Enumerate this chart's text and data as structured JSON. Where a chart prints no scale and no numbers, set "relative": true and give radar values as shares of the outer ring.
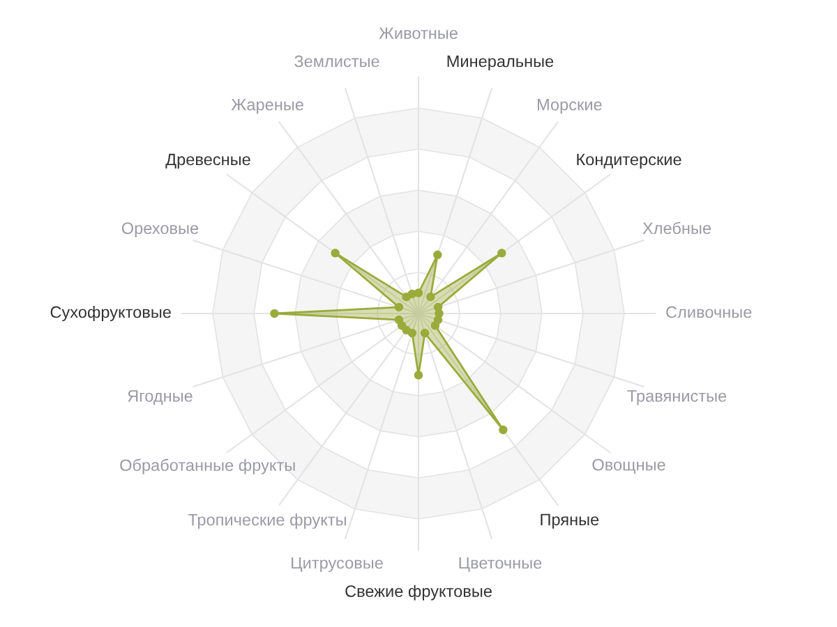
{
  "chart_data": {
    "type": "radar",
    "relative": true,
    "grid": true,
    "marker": "circle",
    "categories": [
      "Животные",
      "Минеральные",
      "Морские",
      "Кондитерские",
      "Хлебные",
      "Сливочные",
      "Травянистые",
      "Овощные",
      "Пряные",
      "Цветочные",
      "Свежие фруктовые",
      "Цитрусовые",
      "Тропические фрукты",
      "Обработанные фрукты",
      "Ягодные",
      "Сухофруктовые",
      "Ореховые",
      "Древесные",
      "Жареные",
      "Землистые"
    ],
    "series": [
      {
        "color": "#9aab3c",
        "values": [
          0.1,
          0.3,
          0.1,
          0.5,
          0.1,
          0.1,
          0.1,
          0.1,
          0.7,
          0.1,
          0.3,
          0.1,
          0.1,
          0.1,
          0.1,
          0.7,
          0.1,
          0.5,
          0.1,
          0.1
        ]
      }
    ]
  }
}
